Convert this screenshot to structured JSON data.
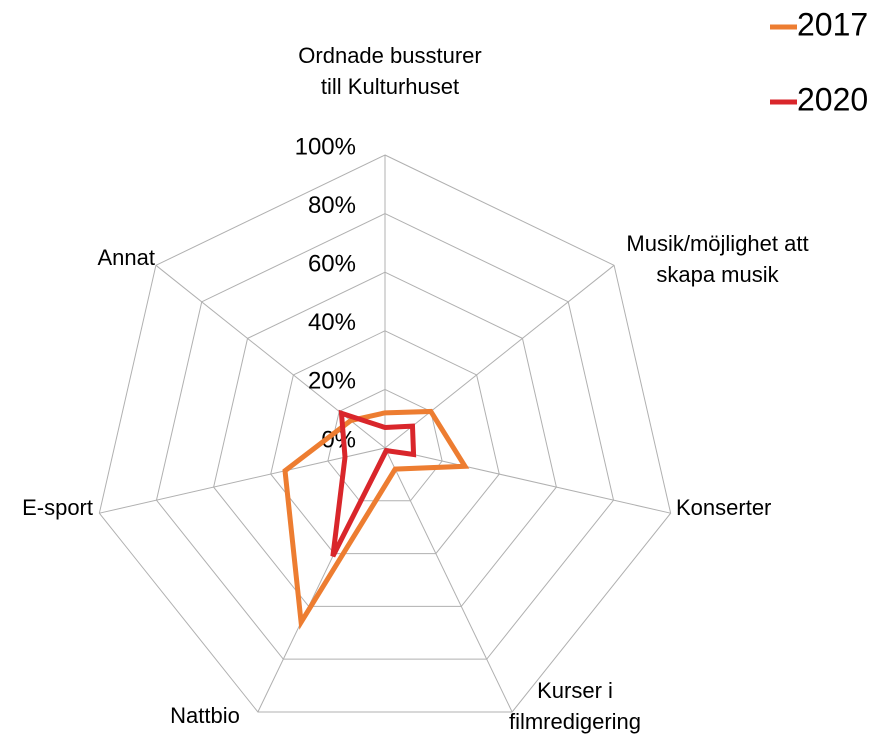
{
  "chart_data": {
    "type": "radar",
    "categories": [
      "Ordnade bussturer till Kulturhuset",
      "Musik/möjlighet att skapa musik",
      "Konserter",
      "Kurser i filmredigering",
      "Nattbio",
      "E-sport",
      "Annat"
    ],
    "series": [
      {
        "name": "2017",
        "color": "#ed7d31",
        "values": [
          12,
          20,
          28,
          8,
          66,
          35,
          15
        ]
      },
      {
        "name": "2020",
        "color": "#d9262b",
        "values": [
          7,
          12,
          10,
          1,
          41,
          14,
          19
        ]
      }
    ],
    "ylim": [
      0,
      100
    ],
    "yticks": [
      {
        "value": 0,
        "label": "0%"
      },
      {
        "value": 20,
        "label": "20%"
      },
      {
        "value": 40,
        "label": "40%"
      },
      {
        "value": 60,
        "label": "60%"
      },
      {
        "value": 80,
        "label": "80%"
      },
      {
        "value": 100,
        "label": "100%"
      }
    ],
    "grid": true,
    "legend": "top-right"
  }
}
